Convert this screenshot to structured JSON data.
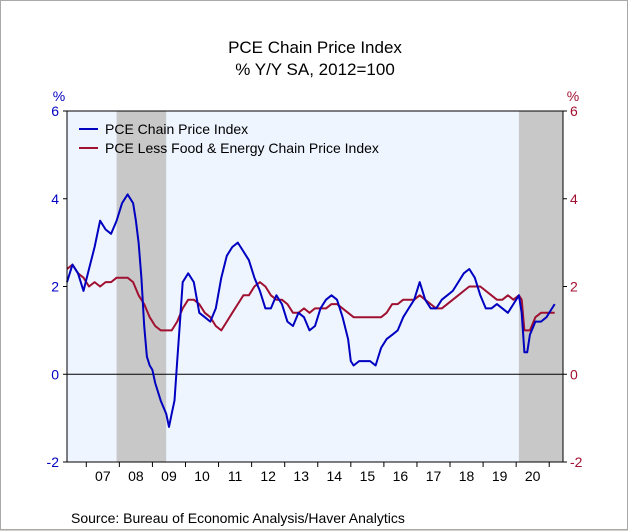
{
  "chart_data": {
    "type": "line",
    "title": "PCE Chain Price Index",
    "subtitle": "% Y/Y   SA, 2012=100",
    "y_unit_left": "%",
    "y_unit_right": "%",
    "ylim": [
      -2,
      6
    ],
    "yticks": [
      6,
      4,
      2,
      0,
      -2
    ],
    "x_start": "2006-06",
    "x_end": "2021-06",
    "x_tick_labels": [
      "07",
      "08",
      "09",
      "10",
      "11",
      "12",
      "13",
      "14",
      "15",
      "16",
      "17",
      "18",
      "19",
      "20"
    ],
    "x_tick_years": [
      2007,
      2008,
      2009,
      2010,
      2011,
      2012,
      2013,
      2014,
      2015,
      2016,
      2017,
      2018,
      2019,
      2020
    ],
    "recessions": [
      {
        "start": "2007-12",
        "end": "2009-06"
      },
      {
        "start": "2020-02",
        "end": "2021-06"
      }
    ],
    "grid": false,
    "legend_position": "top-left",
    "plot_background": "#eef5ff",
    "recession_color": "#c8c8c8",
    "series": [
      {
        "name": "PCE Chain Price Index",
        "color": "#0000c0",
        "x": [
          "2006-06",
          "2006-08",
          "2006-10",
          "2006-12",
          "2007-02",
          "2007-04",
          "2007-06",
          "2007-08",
          "2007-10",
          "2007-12",
          "2008-02",
          "2008-04",
          "2008-06",
          "2008-07",
          "2008-08",
          "2008-09",
          "2008-10",
          "2008-11",
          "2008-12",
          "2009-01",
          "2009-02",
          "2009-04",
          "2009-06",
          "2009-07",
          "2009-08",
          "2009-09",
          "2009-10",
          "2009-11",
          "2009-12",
          "2010-02",
          "2010-04",
          "2010-06",
          "2010-08",
          "2010-10",
          "2010-12",
          "2011-02",
          "2011-04",
          "2011-06",
          "2011-08",
          "2011-10",
          "2011-12",
          "2012-02",
          "2012-04",
          "2012-06",
          "2012-08",
          "2012-10",
          "2012-12",
          "2013-02",
          "2013-04",
          "2013-06",
          "2013-08",
          "2013-10",
          "2013-12",
          "2014-02",
          "2014-04",
          "2014-06",
          "2014-08",
          "2014-10",
          "2014-12",
          "2015-01",
          "2015-02",
          "2015-04",
          "2015-06",
          "2015-08",
          "2015-10",
          "2015-12",
          "2016-02",
          "2016-04",
          "2016-06",
          "2016-08",
          "2016-10",
          "2016-12",
          "2017-02",
          "2017-04",
          "2017-06",
          "2017-08",
          "2017-10",
          "2017-12",
          "2018-02",
          "2018-04",
          "2018-06",
          "2018-08",
          "2018-10",
          "2018-12",
          "2019-02",
          "2019-04",
          "2019-06",
          "2019-08",
          "2019-10",
          "2019-12",
          "2020-02",
          "2020-03",
          "2020-04",
          "2020-05",
          "2020-06",
          "2020-08",
          "2020-10",
          "2020-12",
          "2021-01",
          "2021-02",
          "2021-03"
        ],
        "y": [
          2.1,
          2.5,
          2.3,
          1.9,
          2.4,
          2.9,
          3.5,
          3.3,
          3.2,
          3.5,
          3.9,
          4.1,
          3.9,
          3.5,
          3.0,
          2.2,
          1.1,
          0.4,
          0.2,
          0.1,
          -0.2,
          -0.6,
          -0.9,
          -1.2,
          -0.9,
          -0.6,
          0.3,
          1.2,
          2.1,
          2.3,
          2.1,
          1.4,
          1.3,
          1.2,
          1.5,
          2.2,
          2.7,
          2.9,
          3.0,
          2.8,
          2.6,
          2.2,
          1.9,
          1.5,
          1.5,
          1.8,
          1.6,
          1.2,
          1.1,
          1.4,
          1.3,
          1.0,
          1.1,
          1.5,
          1.7,
          1.8,
          1.7,
          1.3,
          0.8,
          0.3,
          0.2,
          0.3,
          0.3,
          0.3,
          0.2,
          0.6,
          0.8,
          0.9,
          1.0,
          1.3,
          1.5,
          1.7,
          2.1,
          1.7,
          1.5,
          1.5,
          1.7,
          1.8,
          1.9,
          2.1,
          2.3,
          2.4,
          2.2,
          1.8,
          1.5,
          1.5,
          1.6,
          1.5,
          1.4,
          1.6,
          1.8,
          1.4,
          0.5,
          0.5,
          0.9,
          1.2,
          1.2,
          1.3,
          1.4,
          1.5,
          1.6
        ]
      },
      {
        "name": "PCE Less Food & Energy Chain Price Index",
        "color": "#a01030",
        "x": [
          "2006-06",
          "2006-08",
          "2006-10",
          "2006-12",
          "2007-02",
          "2007-04",
          "2007-06",
          "2007-08",
          "2007-10",
          "2007-12",
          "2008-02",
          "2008-04",
          "2008-06",
          "2008-08",
          "2008-10",
          "2008-12",
          "2009-02",
          "2009-04",
          "2009-06",
          "2009-08",
          "2009-10",
          "2009-12",
          "2010-02",
          "2010-04",
          "2010-06",
          "2010-08",
          "2010-10",
          "2010-12",
          "2011-02",
          "2011-04",
          "2011-06",
          "2011-08",
          "2011-10",
          "2011-12",
          "2012-02",
          "2012-04",
          "2012-06",
          "2012-08",
          "2012-10",
          "2012-12",
          "2013-02",
          "2013-04",
          "2013-06",
          "2013-08",
          "2013-10",
          "2013-12",
          "2014-02",
          "2014-04",
          "2014-06",
          "2014-08",
          "2014-10",
          "2014-12",
          "2015-02",
          "2015-04",
          "2015-06",
          "2015-08",
          "2015-10",
          "2015-12",
          "2016-02",
          "2016-04",
          "2016-06",
          "2016-08",
          "2016-10",
          "2016-12",
          "2017-02",
          "2017-04",
          "2017-06",
          "2017-08",
          "2017-10",
          "2017-12",
          "2018-02",
          "2018-04",
          "2018-06",
          "2018-08",
          "2018-10",
          "2018-12",
          "2019-02",
          "2019-04",
          "2019-06",
          "2019-08",
          "2019-10",
          "2019-12",
          "2020-02",
          "2020-03",
          "2020-04",
          "2020-06",
          "2020-08",
          "2020-10",
          "2020-12",
          "2021-02",
          "2021-03"
        ],
        "y": [
          2.4,
          2.5,
          2.3,
          2.2,
          2.0,
          2.1,
          2.0,
          2.1,
          2.1,
          2.2,
          2.2,
          2.2,
          2.1,
          1.8,
          1.6,
          1.3,
          1.1,
          1.0,
          1.0,
          1.0,
          1.2,
          1.5,
          1.7,
          1.7,
          1.6,
          1.4,
          1.3,
          1.1,
          1.0,
          1.2,
          1.4,
          1.6,
          1.8,
          1.8,
          2.0,
          2.1,
          2.0,
          1.8,
          1.7,
          1.7,
          1.6,
          1.4,
          1.4,
          1.5,
          1.4,
          1.5,
          1.5,
          1.5,
          1.6,
          1.6,
          1.5,
          1.4,
          1.3,
          1.3,
          1.3,
          1.3,
          1.3,
          1.3,
          1.4,
          1.6,
          1.6,
          1.7,
          1.7,
          1.7,
          1.8,
          1.7,
          1.6,
          1.5,
          1.5,
          1.6,
          1.7,
          1.8,
          1.9,
          2.0,
          2.0,
          2.0,
          1.9,
          1.8,
          1.7,
          1.7,
          1.8,
          1.7,
          1.8,
          1.7,
          1.0,
          1.0,
          1.3,
          1.4,
          1.4,
          1.4,
          1.4
        ]
      }
    ]
  },
  "source_text": "Source:  Bureau of Economic Analysis/Haver Analytics"
}
